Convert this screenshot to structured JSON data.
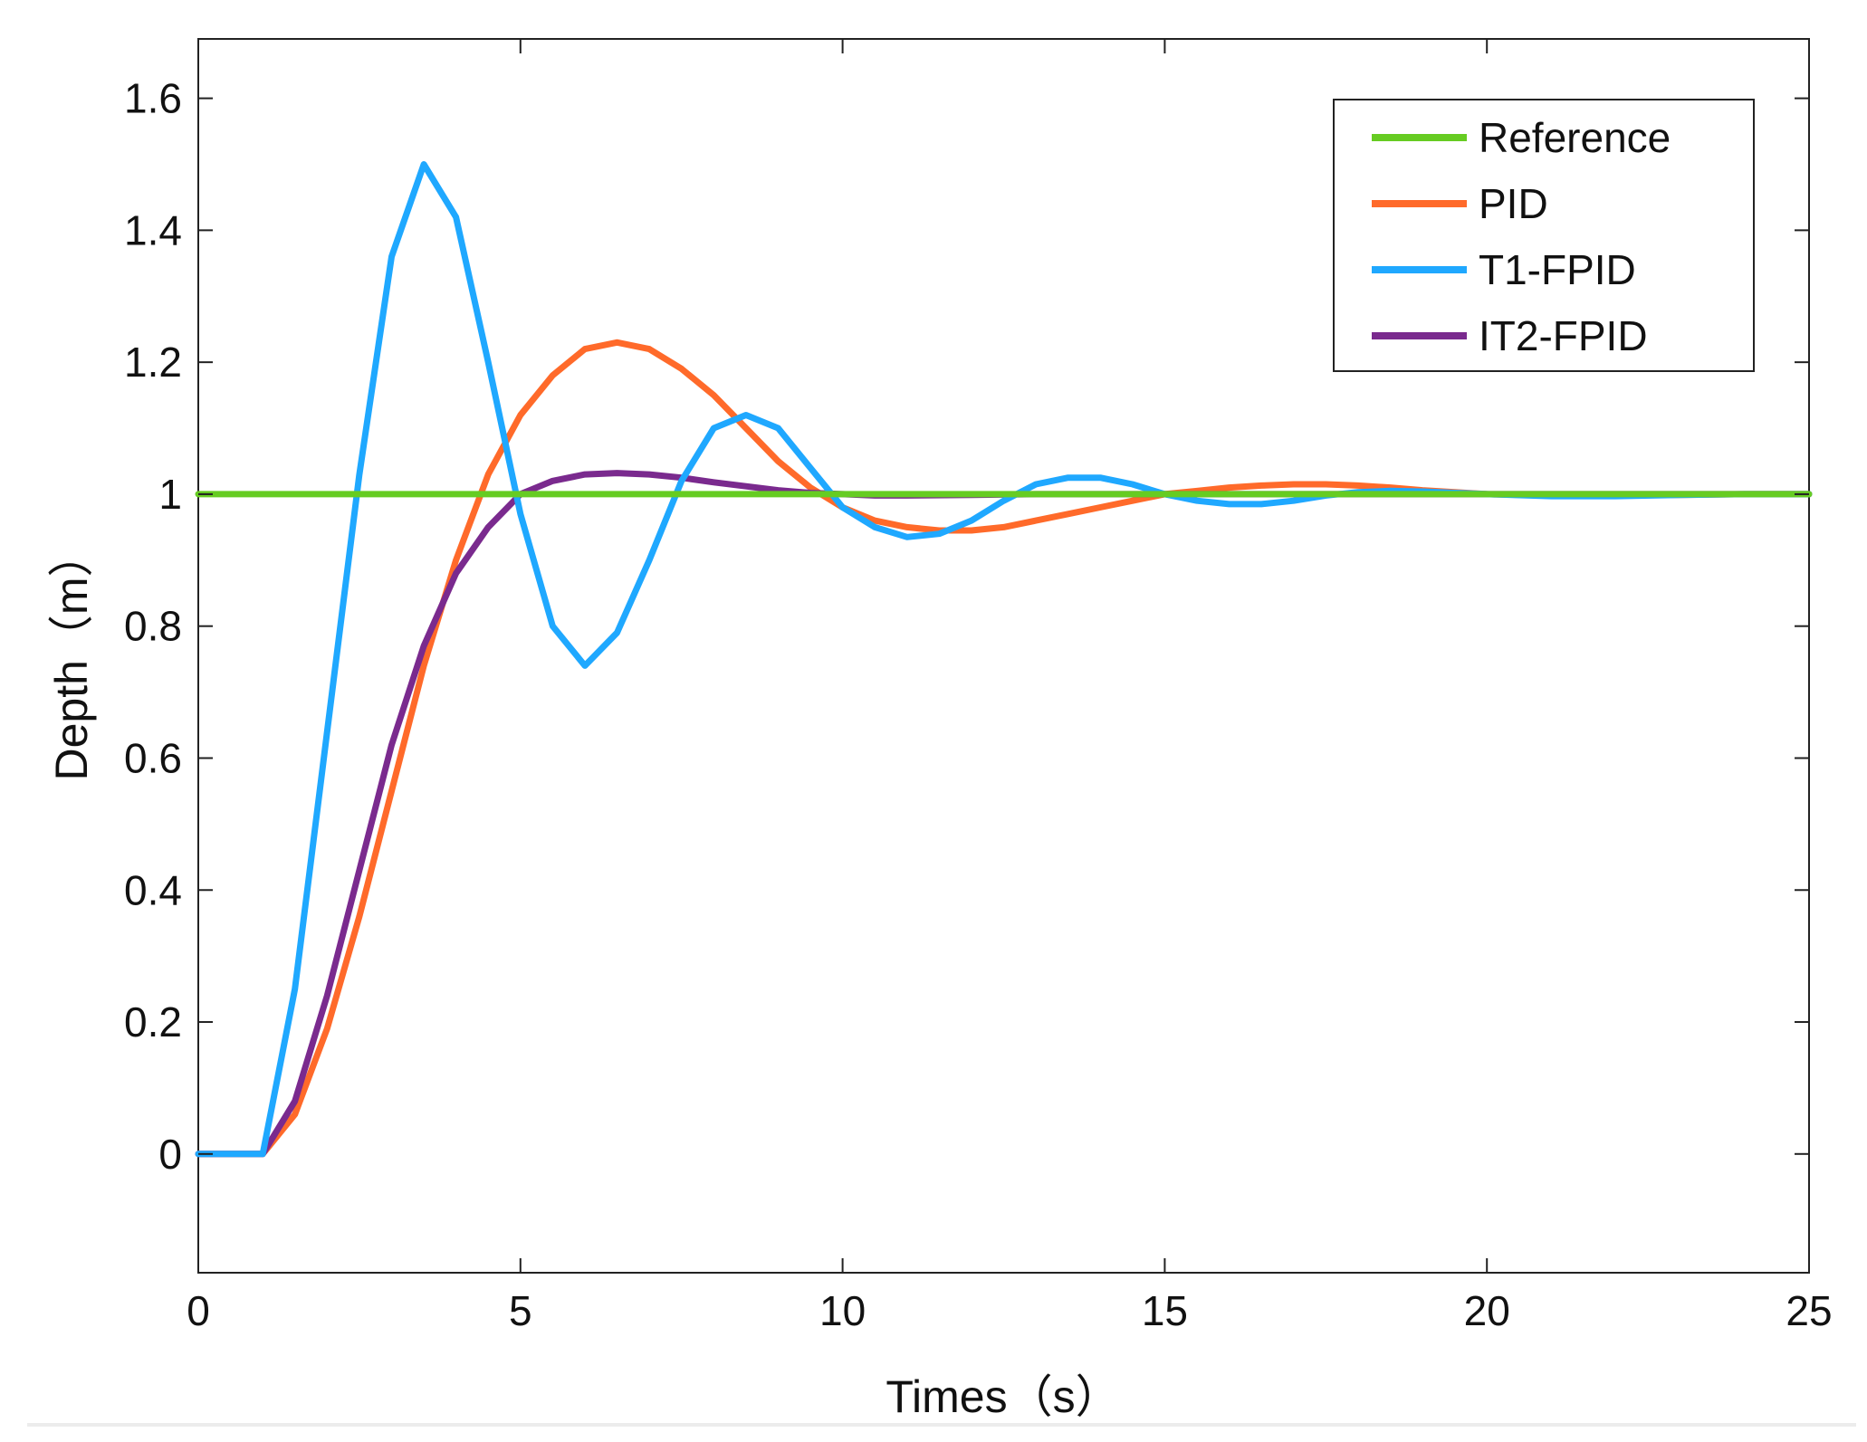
{
  "chart_data": {
    "type": "line",
    "title": "",
    "xlabel": "Times（s）",
    "ylabel": "Depth（m）",
    "xlim": [
      0,
      25
    ],
    "ylim": [
      -0.18,
      1.69
    ],
    "xticks": [
      0,
      5,
      10,
      15,
      20,
      25
    ],
    "yticks": [
      0,
      0.2,
      0.4,
      0.6,
      0.8,
      1,
      1.2,
      1.4,
      1.6
    ],
    "ytick_labels": [
      "0",
      "0.2",
      "0.4",
      "0.6",
      "0.8",
      "1",
      "1.2",
      "1.4",
      "1.6"
    ],
    "xtick_labels": [
      "0",
      "5",
      "10",
      "15",
      "20",
      "25"
    ],
    "grid": false,
    "legend_position": "top-right",
    "series": [
      {
        "name": "Reference",
        "color": "#66cc22",
        "x": [
          0,
          25
        ],
        "y": [
          1,
          1
        ]
      },
      {
        "name": "PID",
        "color": "#ff6a2a",
        "x": [
          0,
          1,
          1.5,
          2,
          2.5,
          3,
          3.5,
          4,
          4.5,
          5,
          5.5,
          6,
          6.5,
          7,
          7.5,
          8,
          8.5,
          9,
          9.5,
          10,
          10.5,
          11,
          11.5,
          12,
          12.5,
          13,
          13.5,
          14,
          14.5,
          15,
          15.5,
          16,
          16.5,
          17,
          17.5,
          18,
          18.5,
          19,
          19.5,
          20,
          21,
          22,
          23,
          24,
          25
        ],
        "y": [
          0,
          0,
          0.06,
          0.19,
          0.36,
          0.55,
          0.74,
          0.9,
          1.03,
          1.12,
          1.18,
          1.22,
          1.23,
          1.22,
          1.19,
          1.15,
          1.1,
          1.05,
          1.01,
          0.98,
          0.96,
          0.95,
          0.945,
          0.945,
          0.95,
          0.96,
          0.97,
          0.98,
          0.99,
          1.0,
          1.005,
          1.01,
          1.013,
          1.015,
          1.015,
          1.013,
          1.01,
          1.006,
          1.003,
          1.0,
          0.998,
          0.998,
          0.999,
          1.0,
          1.0
        ]
      },
      {
        "name": "T1-FPID",
        "color": "#1fa8ff",
        "x": [
          0,
          1,
          1.5,
          2,
          2.5,
          3,
          3.5,
          4,
          4.5,
          5,
          5.5,
          6,
          6.5,
          7,
          7.5,
          8,
          8.5,
          9,
          9.5,
          10,
          10.5,
          11,
          11.5,
          12,
          12.5,
          13,
          13.5,
          14,
          14.5,
          15,
          15.5,
          16,
          16.5,
          17,
          17.5,
          18,
          18.5,
          19,
          19.5,
          20,
          21,
          22,
          23,
          24,
          25
        ],
        "y": [
          0,
          0,
          0.25,
          0.64,
          1.03,
          1.36,
          1.5,
          1.42,
          1.2,
          0.97,
          0.8,
          0.74,
          0.79,
          0.9,
          1.02,
          1.1,
          1.12,
          1.1,
          1.04,
          0.98,
          0.95,
          0.935,
          0.94,
          0.96,
          0.99,
          1.015,
          1.025,
          1.025,
          1.015,
          1.0,
          0.99,
          0.985,
          0.985,
          0.99,
          0.998,
          1.003,
          1.005,
          1.004,
          1.002,
          1.0,
          0.997,
          0.997,
          0.999,
          1.0,
          1.0
        ]
      },
      {
        "name": "IT2-FPID",
        "color": "#7a2a8e",
        "x": [
          0,
          1,
          1.5,
          2,
          2.5,
          3,
          3.5,
          4,
          4.5,
          5,
          5.5,
          6,
          6.5,
          7,
          7.5,
          8,
          8.5,
          9,
          9.5,
          10,
          10.5,
          11,
          12,
          13,
          14,
          15,
          16,
          17,
          18,
          19,
          20,
          21,
          22,
          23,
          24,
          25
        ],
        "y": [
          0,
          0,
          0.08,
          0.24,
          0.43,
          0.62,
          0.77,
          0.88,
          0.95,
          1.0,
          1.02,
          1.03,
          1.032,
          1.03,
          1.025,
          1.018,
          1.012,
          1.006,
          1.002,
          1.0,
          0.998,
          0.998,
          0.999,
          1.0,
          1.0,
          1.0,
          1.0,
          1.0,
          1.0,
          1.0,
          1.0,
          1.0,
          1.0,
          1.0,
          1.0,
          1.0
        ]
      }
    ]
  }
}
